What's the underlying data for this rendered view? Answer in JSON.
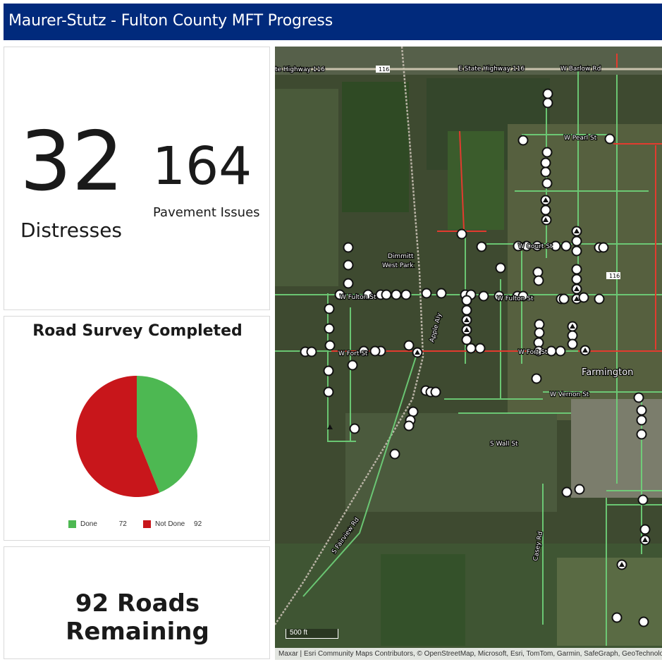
{
  "header": {
    "title": "Maurer-Stutz - Fulton County MFT Progress"
  },
  "indicators": {
    "distresses": {
      "value": "32",
      "label": "Distresses"
    },
    "pavement": {
      "value": "164",
      "label": "Pavement Issues"
    }
  },
  "survey_chart": {
    "title": "Road Survey Completed",
    "legend": [
      {
        "label": "Done",
        "value": "72",
        "color": "#4db852"
      },
      {
        "label": "Not Done",
        "value": "92",
        "color": "#c8161b"
      }
    ]
  },
  "chart_data": {
    "type": "pie",
    "title": "Road Survey Completed",
    "categories": [
      "Done",
      "Not Done"
    ],
    "values": [
      72,
      92
    ],
    "colors": [
      "#4db852",
      "#c8161b"
    ],
    "legend": "bottom"
  },
  "remaining": {
    "text": "92 Roads Remaining"
  },
  "map": {
    "attribution": "Maxar | Esri Community Maps Contributors, © OpenStreetMap, Microsoft, Esri, TomTom, Garmin, SafeGraph, GeoTechnologies",
    "scale_label": "500 ft",
    "town_label": "Farmington",
    "park_label_1": "Dimmitt",
    "park_label_2": "West Park",
    "street_labels": {
      "hwy_west": "te Highway 116",
      "hwy_shield_1": "116",
      "hwy_east": "E State Highway 116",
      "barlow": "W Barlow Rd",
      "pearl": "W Pearl St",
      "court": "W Court St",
      "fulton_w": "W Fulton St",
      "fulton_e": "W Fulton St",
      "fort_w": "W Fort St",
      "fort_e": "W Fort St",
      "vernon": "W Vernon St",
      "wall": "S Wall St",
      "fairview": "S Fairview Rd",
      "casey": "Casey Rd",
      "apple": "Apple Aly",
      "hwy_shield_2": "116"
    }
  }
}
